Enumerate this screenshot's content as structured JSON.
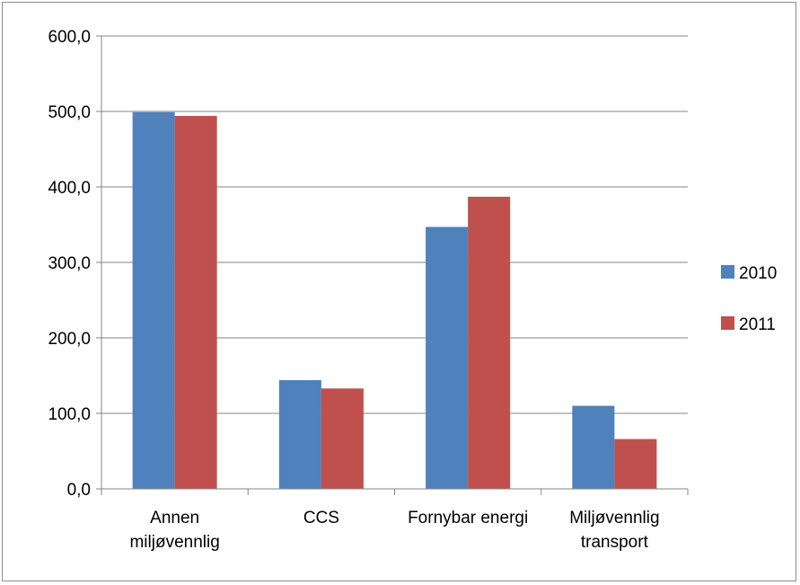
{
  "chart_data": {
    "type": "bar",
    "title": "",
    "xlabel": "",
    "ylabel": "",
    "categories": [
      [
        "Annen",
        "miljøvennlig"
      ],
      [
        "CCS"
      ],
      [
        "Fornybar energi"
      ],
      [
        "Miljøvennlig",
        "transport"
      ]
    ],
    "series": [
      {
        "name": "2010",
        "color": "#4f81bd",
        "values": [
          499,
          144,
          347,
          110
        ]
      },
      {
        "name": "2011",
        "color": "#c0504d",
        "values": [
          494,
          133,
          387,
          66
        ]
      }
    ],
    "ylim": [
      0,
      600
    ],
    "yticks": [
      "0,0",
      "100,0",
      "200,0",
      "300,0",
      "400,0",
      "500,0",
      "600,0"
    ],
    "grid": true,
    "legend_position": "right"
  }
}
